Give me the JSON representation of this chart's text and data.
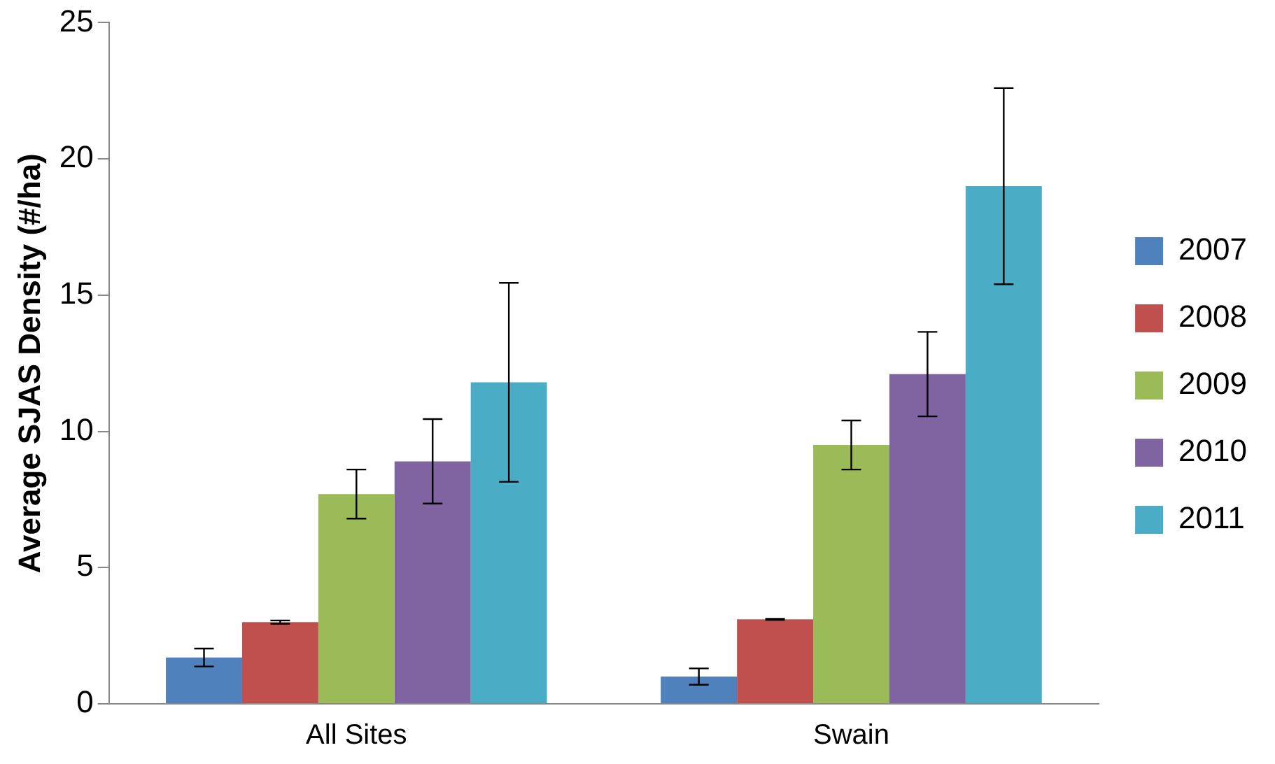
{
  "chart_data": {
    "type": "bar",
    "ylabel": "Average SJAS Density (#/ha)",
    "categories": [
      "All Sites",
      "Swain"
    ],
    "series": [
      {
        "name": "2007",
        "color": "#4f81bd",
        "values": [
          1.7,
          1.0
        ],
        "errors": [
          0.33,
          0.3
        ]
      },
      {
        "name": "2008",
        "color": "#c0504d",
        "values": [
          3.0,
          3.1
        ],
        "errors": [
          0.06,
          0.02
        ]
      },
      {
        "name": "2009",
        "color": "#9bbb59",
        "values": [
          7.7,
          9.5
        ],
        "errors": [
          0.9,
          0.9
        ]
      },
      {
        "name": "2010",
        "color": "#8064a2",
        "values": [
          8.9,
          12.1
        ],
        "errors": [
          1.55,
          1.55
        ]
      },
      {
        "name": "2011",
        "color": "#4bacc6",
        "values": [
          11.8,
          19.0
        ],
        "errors": [
          3.65,
          3.6
        ]
      }
    ],
    "ylim": [
      0,
      25
    ],
    "yticks": [
      0,
      5,
      10,
      15,
      20,
      25
    ],
    "grid": false,
    "legend": "right"
  }
}
